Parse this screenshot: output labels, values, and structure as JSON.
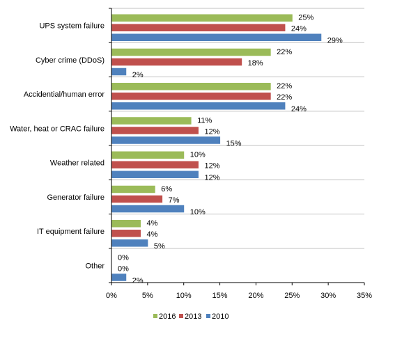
{
  "chart_data": {
    "type": "bar",
    "orientation": "horizontal",
    "title": "",
    "xlabel": "",
    "ylabel": "",
    "xlim": [
      0,
      35
    ],
    "x_ticks": [
      "0%",
      "5%",
      "10%",
      "15%",
      "20%",
      "25%",
      "30%",
      "35%"
    ],
    "categories": [
      "UPS system failure",
      "Cyber crime (DDoS)",
      "Accidential/human error",
      "Water, heat or CRAC failure",
      "Weather related",
      "Generator failure",
      "IT equipment failure",
      "Other"
    ],
    "series": [
      {
        "name": "2016",
        "color": "#9bbb59",
        "values": [
          25,
          22,
          22,
          11,
          10,
          6,
          4,
          0
        ],
        "labels": [
          "25%",
          "22%",
          "22%",
          "11%",
          "10%",
          "6%",
          "4%",
          "0%"
        ]
      },
      {
        "name": "2013",
        "color": "#c0504d",
        "values": [
          24,
          18,
          22,
          12,
          12,
          7,
          4,
          0
        ],
        "labels": [
          "24%",
          "18%",
          "22%",
          "12%",
          "12%",
          "7%",
          "4%",
          "0%"
        ]
      },
      {
        "name": "2010",
        "color": "#4f81bd",
        "values": [
          29,
          2,
          24,
          15,
          12,
          10,
          5,
          2
        ],
        "labels": [
          "29%",
          "2%",
          "24%",
          "15%",
          "12%",
          "10%",
          "5%",
          "2%"
        ]
      }
    ],
    "grid": true,
    "legend_position": "bottom"
  }
}
